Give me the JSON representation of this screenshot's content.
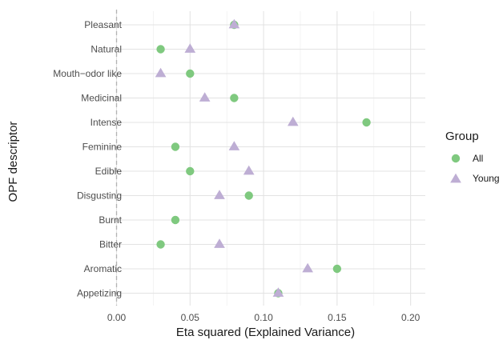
{
  "chart_data": {
    "type": "scatter",
    "orientation": "horizontal-dot-plot",
    "xlabel": "Eta squared (Explained Variance)",
    "ylabel": "OPF descriptor",
    "xlim": [
      -0.003,
      0.21
    ],
    "x_ticks": [
      "0.00",
      "0.05",
      "0.10",
      "0.15",
      "0.20"
    ],
    "x_tick_values": [
      0.0,
      0.05,
      0.1,
      0.15,
      0.2
    ],
    "grid": true,
    "reference_line": {
      "x": 0.0,
      "style": "dashed"
    },
    "categories": [
      "Pleasant",
      "Natural",
      "Mouth−odor like",
      "Medicinal",
      "Intense",
      "Feminine",
      "Edible",
      "Disgusting",
      "Burnt",
      "Bitter",
      "Aromatic",
      "Appetizing"
    ],
    "series": [
      {
        "name": "All",
        "marker": "circle",
        "color": "#7fc97f",
        "values": [
          0.08,
          0.03,
          0.05,
          0.08,
          0.17,
          0.04,
          0.05,
          0.09,
          0.04,
          0.03,
          0.15,
          0.11
        ]
      },
      {
        "name": "Young",
        "marker": "triangle",
        "color": "#beaed4",
        "values": [
          0.08,
          0.05,
          0.03,
          0.06,
          0.12,
          0.08,
          0.09,
          0.07,
          null,
          0.07,
          0.13,
          0.11
        ]
      }
    ],
    "legend": {
      "title": "Group",
      "position": "right"
    }
  }
}
